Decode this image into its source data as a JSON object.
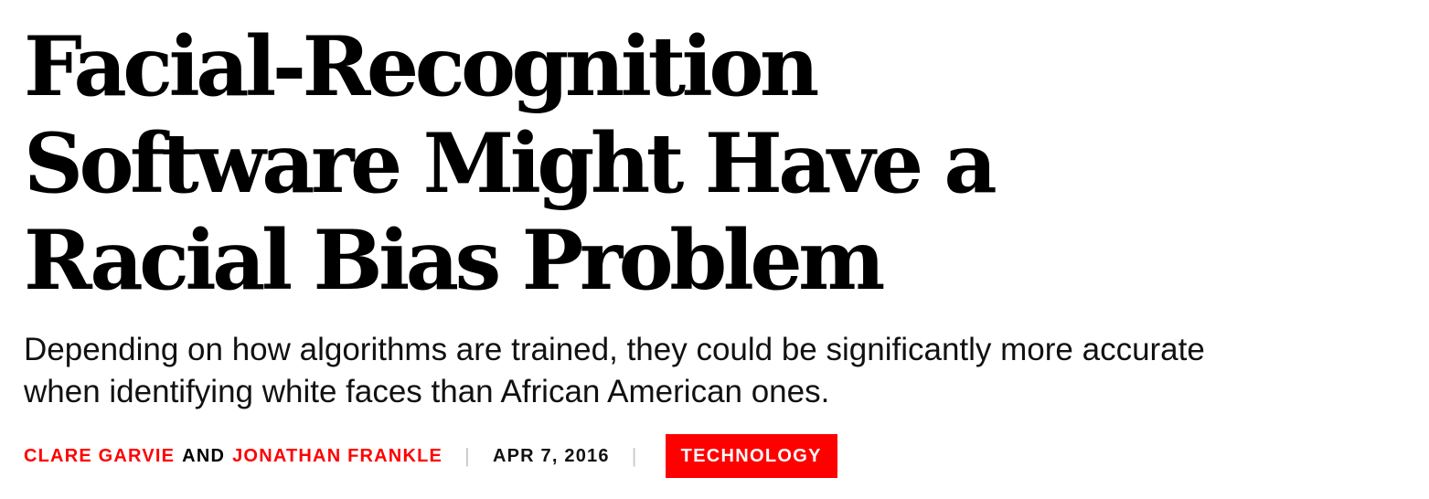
{
  "article": {
    "headline": {
      "line1": "Facial-Recognition",
      "line2": "Software Might Have a",
      "line3": "Racial Bias Problem"
    },
    "dek": "Depending on how algorithms are trained, they could be significantly more accurate when identifying white faces than African American ones.",
    "byline": {
      "author1": "CLARE GARVIE",
      "joiner": "AND",
      "author2": "JONATHAN FRANKLE",
      "separator": "|",
      "date": "APR 7, 2016",
      "section": "TECHNOLOGY"
    },
    "colors": {
      "accent": "#ff0000",
      "text": "#000000",
      "separator": "#c8c8c8"
    }
  }
}
